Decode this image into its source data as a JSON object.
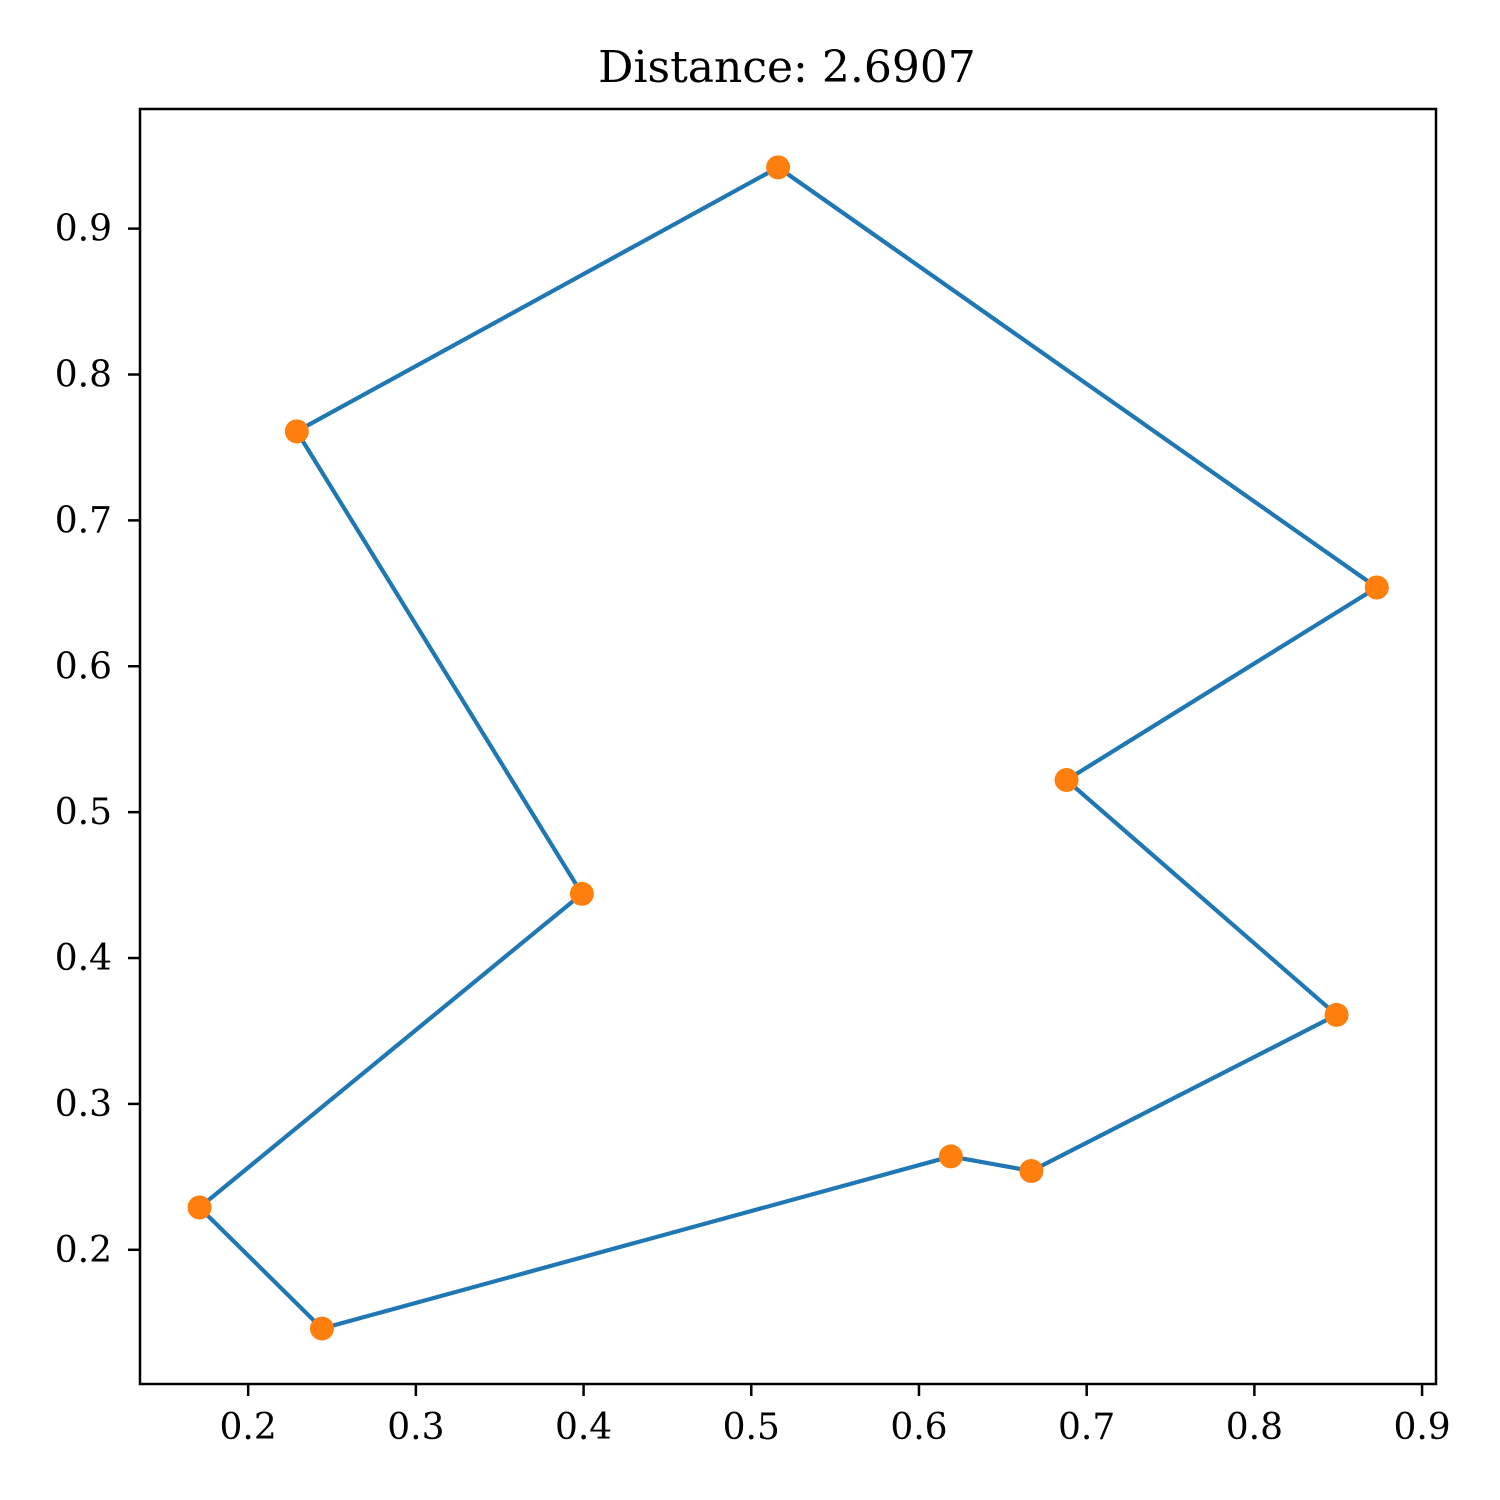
{
  "chart_data": {
    "type": "line",
    "title": "Distance: 2.6907",
    "xlabel": "",
    "ylabel": "",
    "xlim": [
      0.1355,
      0.9083
    ],
    "ylim": [
      0.108,
      0.982
    ],
    "xticks": [
      0.2,
      0.3,
      0.4,
      0.5,
      0.6,
      0.7,
      0.8,
      0.9
    ],
    "xtick_labels": [
      "0.2",
      "0.3",
      "0.4",
      "0.5",
      "0.6",
      "0.7",
      "0.8",
      "0.9"
    ],
    "yticks": [
      0.2,
      0.3,
      0.4,
      0.5,
      0.6,
      0.7,
      0.8,
      0.9
    ],
    "ytick_labels": [
      "0.2",
      "0.3",
      "0.4",
      "0.5",
      "0.6",
      "0.7",
      "0.8",
      "0.9"
    ],
    "grid": false,
    "line_color": "#1f77b4",
    "marker_color": "#ff7f0e",
    "series": [
      {
        "closed": true,
        "x": [
          0.516,
          0.873,
          0.688,
          0.849,
          0.667,
          0.619,
          0.244,
          0.171,
          0.399,
          0.229
        ],
        "y": [
          0.942,
          0.654,
          0.522,
          0.361,
          0.254,
          0.264,
          0.146,
          0.229,
          0.444,
          0.761
        ]
      }
    ]
  }
}
